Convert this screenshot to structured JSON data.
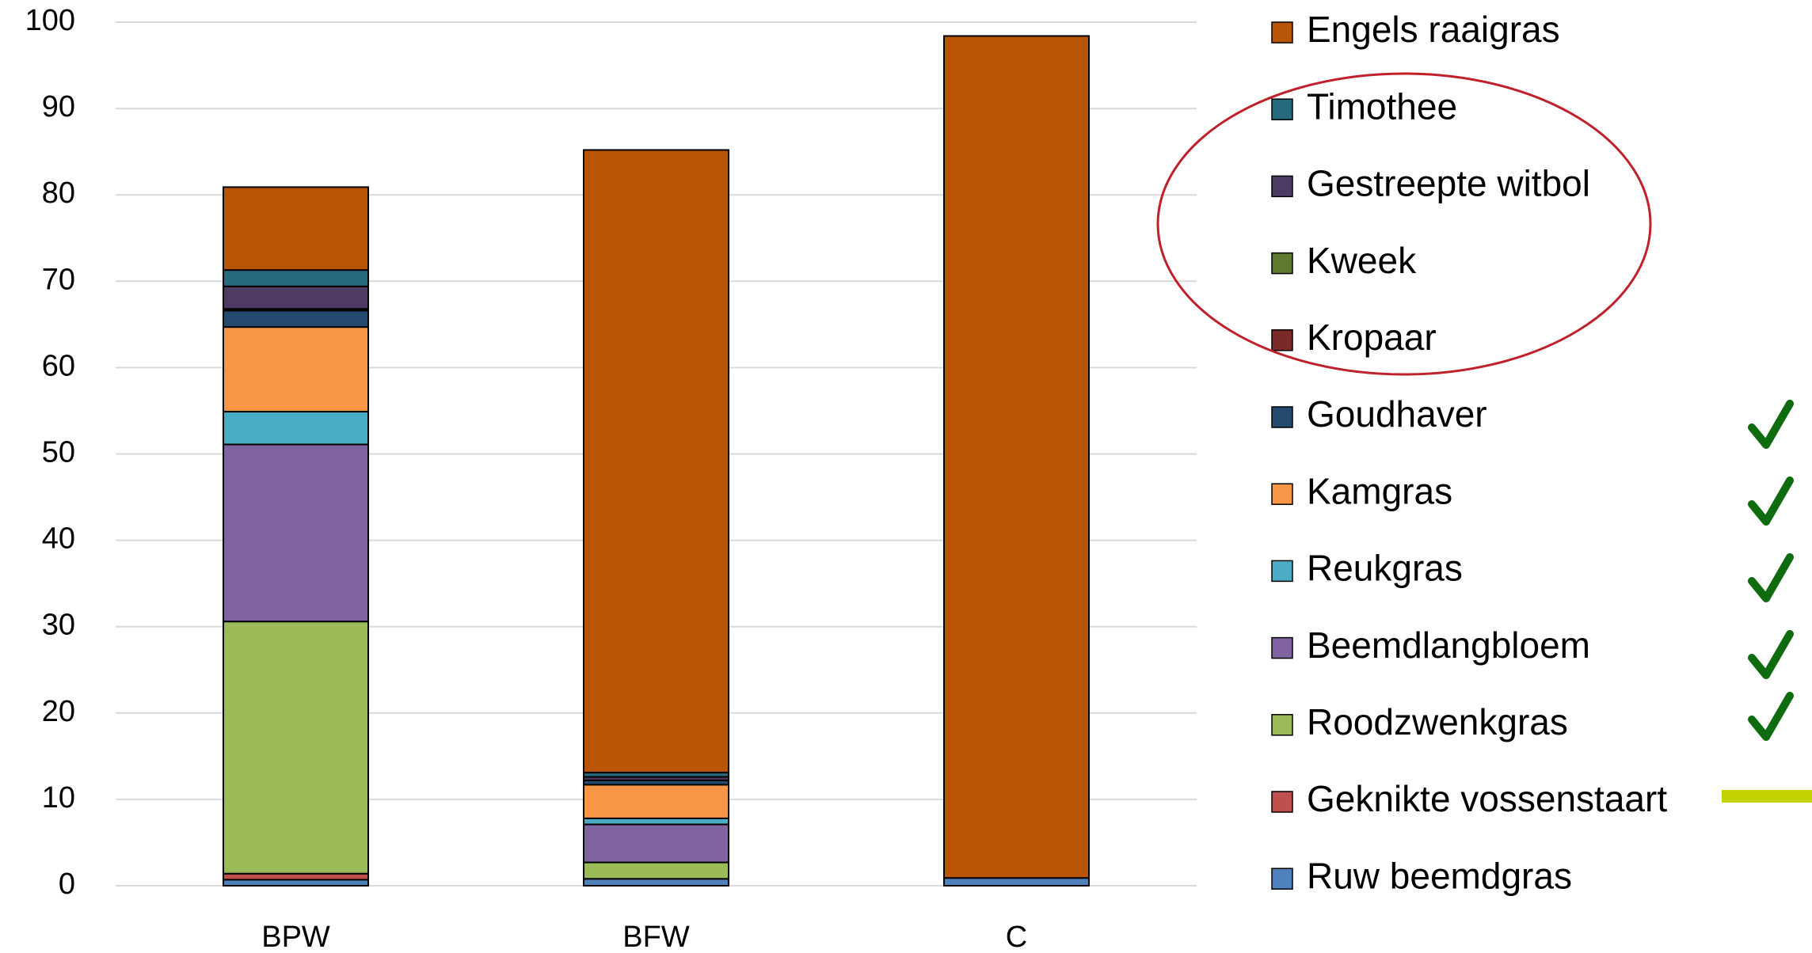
{
  "chart_data": {
    "type": "stacked_bar",
    "categories": [
      "BPW",
      "BFW",
      "C"
    ],
    "series": [
      {
        "name": "Ruw beemdgras",
        "color": "#4f81bd",
        "values": [
          0.7,
          0.8,
          0.9
        ]
      },
      {
        "name": "Geknikte vossenstaart",
        "color": "#c0504d",
        "values": [
          0.7,
          0,
          0
        ]
      },
      {
        "name": "Roodzwenkgras",
        "color": "#9bbb59",
        "values": [
          29.2,
          1.9,
          0
        ]
      },
      {
        "name": "Beemdlangbloem",
        "color": "#8064a2",
        "values": [
          20.5,
          4.4,
          0
        ]
      },
      {
        "name": "Reukgras",
        "color": "#4bacc6",
        "values": [
          3.8,
          0.7,
          0
        ]
      },
      {
        "name": "Kamgras",
        "color": "#f79646",
        "values": [
          9.8,
          3.9,
          0
        ]
      },
      {
        "name": "Goudhaver",
        "color": "#254a70",
        "values": [
          1.9,
          0.5,
          0
        ]
      },
      {
        "name": "Kropaar",
        "color": "#7b2a2a",
        "values": [
          0.2,
          0,
          0
        ]
      },
      {
        "name": "Kweek",
        "color": "#5d7a2f",
        "values": [
          0,
          0,
          0
        ]
      },
      {
        "name": "Gestreepte witbol",
        "color": "#4e3b63",
        "values": [
          2.6,
          0.4,
          0
        ]
      },
      {
        "name": "Timothee",
        "color": "#256b7d",
        "values": [
          1.9,
          0.5,
          0
        ]
      },
      {
        "name": "Engels raaigras",
        "color": "#b85507",
        "values": [
          9.6,
          72.1,
          97.5
        ]
      }
    ],
    "ylim": [
      0,
      100
    ],
    "yticks": [
      0,
      10,
      20,
      30,
      40,
      50,
      60,
      70,
      80,
      90,
      100
    ],
    "grid": true
  }
}
